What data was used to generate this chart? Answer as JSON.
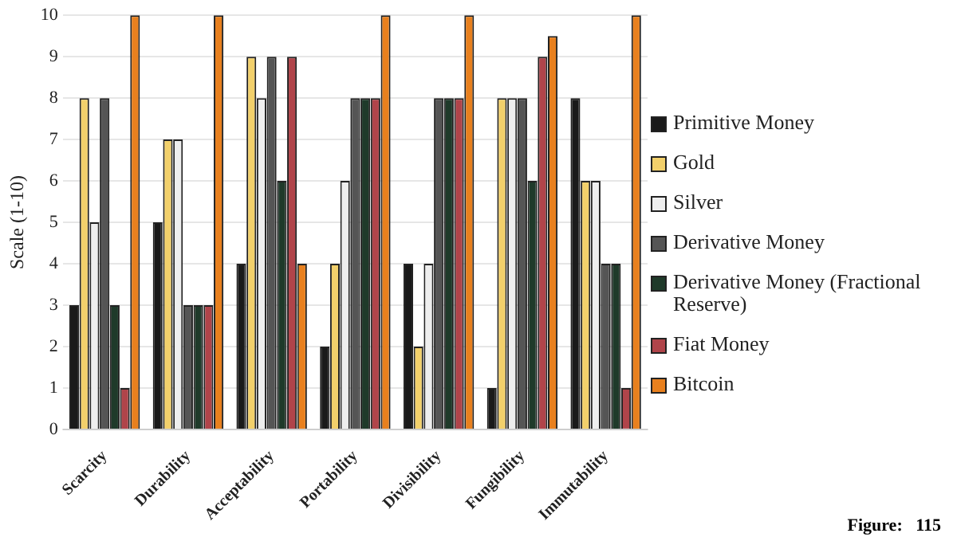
{
  "chart_data": {
    "type": "bar",
    "ylabel": "Scale (1-10)",
    "categories": [
      "Scarcity",
      "Durability",
      "Acceptability",
      "Portability",
      "Divisibility",
      "Fungibility",
      "Immutability"
    ],
    "series": [
      {
        "name": "Primitive Money",
        "color": "#1a1a1a",
        "values": [
          3,
          5,
          4,
          2,
          4,
          1,
          8
        ]
      },
      {
        "name": "Gold",
        "color": "#f2d06b",
        "values": [
          8,
          7,
          9,
          4,
          2,
          8,
          6
        ]
      },
      {
        "name": "Silver",
        "color": "#eeeeee",
        "values": [
          5,
          7,
          8,
          6,
          4,
          8,
          6
        ]
      },
      {
        "name": "Derivative Money",
        "color": "#555555",
        "values": [
          8,
          3,
          9,
          8,
          8,
          8,
          4
        ]
      },
      {
        "name": "Derivative Money (Fractional Reserve)",
        "color": "#1f3a2a",
        "values": [
          3,
          3,
          6,
          8,
          8,
          6,
          4
        ]
      },
      {
        "name": "Fiat Money",
        "color": "#b0444a",
        "values": [
          1,
          3,
          9,
          8,
          8,
          9,
          1
        ]
      },
      {
        "name": "Bitcoin",
        "color": "#e8801e",
        "values": [
          10,
          10,
          4,
          10,
          10,
          9.5,
          10
        ]
      }
    ],
    "ylim": [
      0,
      10
    ],
    "yticks": [
      0,
      1,
      2,
      3,
      4,
      5,
      6,
      7,
      8,
      9,
      10
    ],
    "grid": "y",
    "legend": "right",
    "annotations": [
      "Figure:   115"
    ]
  }
}
